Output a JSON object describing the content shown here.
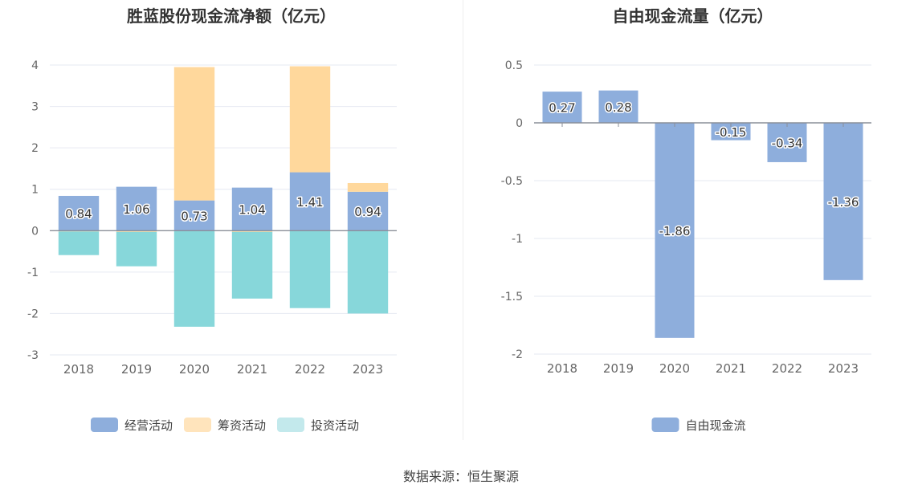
{
  "source": "数据来源：恒生聚源",
  "chart_data": [
    {
      "type": "bar",
      "stacked": true,
      "title": "胜蓝股份现金流净额（亿元）",
      "categories": [
        "2018",
        "2019",
        "2020",
        "2021",
        "2022",
        "2023"
      ],
      "ylim": [
        -3,
        4
      ],
      "yticks": [
        "4",
        "3",
        "2",
        "1",
        "0",
        "-1",
        "-2",
        "-3"
      ],
      "grid": true,
      "legend_position": "bottom",
      "series": [
        {
          "name": "经营活动",
          "color": "#8eaedc",
          "values": [
            0.84,
            1.06,
            0.73,
            1.04,
            1.41,
            0.94
          ],
          "labels": [
            "0.84",
            "1.06",
            "0.73",
            "1.04",
            "1.41",
            "0.94"
          ]
        },
        {
          "name": "筹资活动",
          "color": "#ffd89c",
          "values": [
            -0.02,
            -0.03,
            3.22,
            -0.03,
            2.56,
            0.21
          ]
        },
        {
          "name": "投资活动",
          "color": "#87d7da",
          "values": [
            -0.57,
            -0.83,
            -2.32,
            -1.61,
            -1.87,
            -2.0
          ]
        }
      ],
      "legend_colors": [
        "#8eaedc",
        "#ffe4bc",
        "#c3e9ec"
      ]
    },
    {
      "type": "bar",
      "title": "自由现金流量（亿元）",
      "categories": [
        "2018",
        "2019",
        "2020",
        "2021",
        "2022",
        "2023"
      ],
      "ylim": [
        -2,
        0.5
      ],
      "yticks": [
        "0.5",
        "0",
        "-0.5",
        "-1",
        "-1.5",
        "-2"
      ],
      "grid": true,
      "legend_position": "bottom",
      "series": [
        {
          "name": "自由现金流",
          "color": "#8eaedc",
          "values": [
            0.27,
            0.28,
            -1.86,
            -0.15,
            -0.34,
            -1.36
          ],
          "labels": [
            "0.27",
            "0.28",
            "-1.86",
            "-0.15",
            "-0.34",
            "-1.36"
          ]
        }
      ]
    }
  ]
}
